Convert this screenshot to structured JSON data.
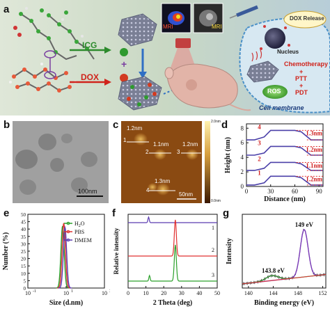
{
  "figure": {
    "panel_labels": {
      "a": "a",
      "b": "b",
      "c": "c",
      "d": "d",
      "e": "e",
      "f": "f",
      "g": "g"
    }
  },
  "panel_a": {
    "icg_label": "ICG",
    "dox_label": "DOX",
    "mri_label": "MRI",
    "mri_label2": "MRI",
    "dox_release": "DOX Release",
    "nucleus": "Nucleus",
    "chemo": "Chemotherapy",
    "ptt": "PTT",
    "pdt": "PDT",
    "ros": "ROS",
    "cell_membrane": "Cell membrane",
    "plus1": "+",
    "plus2": "+",
    "plus3": "+",
    "colors": {
      "bg": "#c6d6c0",
      "icg": "#2c8a2c",
      "dox": "#d0231b",
      "arrow_blue": "#2f6fc4"
    }
  },
  "panel_b": {
    "scalebar": "100nm"
  },
  "panel_c": {
    "heights": [
      "1.2nm",
      "1.1nm",
      "1.2nm",
      "1.3nm"
    ],
    "markers": [
      "1",
      "2",
      "3",
      "4"
    ],
    "colorbar_top": "2.0nm",
    "colorbar_bottom": "0.0nm",
    "scalebar": "50nm"
  },
  "panel_d": {
    "ylabel": "Height (nm)",
    "xlabel": "Distance (nm)",
    "xticks": [
      "0",
      "30",
      "60",
      "90"
    ],
    "yticks": [
      "0",
      "2",
      "4",
      "6",
      "8"
    ],
    "curve_labels": [
      "4",
      "3",
      "2",
      "1"
    ],
    "height_labels": [
      "1.3nm",
      "1.2nm",
      "1.1nm",
      "1.2nm"
    ]
  },
  "chart_data": [
    {
      "type": "line",
      "panel": "d",
      "xlabel": "Distance (nm)",
      "ylabel": "Height (nm)",
      "xlim": [
        0,
        95
      ],
      "ylim": [
        0,
        8.6
      ],
      "series": [
        {
          "name": "1",
          "x": [
            0,
            10,
            22,
            30,
            60,
            68,
            80,
            95
          ],
          "y": [
            0.2,
            0.2,
            0.5,
            1.4,
            1.4,
            1.2,
            0.2,
            0.2
          ]
        },
        {
          "name": "2",
          "x": [
            0,
            10,
            22,
            30,
            60,
            68,
            80,
            95
          ],
          "y": [
            2.2,
            2.2,
            2.5,
            3.3,
            3.3,
            3.1,
            2.2,
            2.2
          ]
        },
        {
          "name": "3",
          "x": [
            0,
            10,
            22,
            30,
            60,
            68,
            80,
            95
          ],
          "y": [
            4.3,
            4.3,
            4.6,
            5.5,
            5.5,
            5.3,
            4.3,
            4.3
          ]
        },
        {
          "name": "4",
          "x": [
            0,
            10,
            22,
            30,
            60,
            68,
            80,
            95
          ],
          "y": [
            6.4,
            6.4,
            6.8,
            7.7,
            7.7,
            7.5,
            6.4,
            6.4
          ]
        }
      ]
    },
    {
      "type": "line",
      "panel": "e",
      "xlabel": "Size (d.nm)",
      "ylabel": "Number (%)",
      "xscale": "log",
      "xlim": [
        0.1,
        1000
      ],
      "ylim": [
        0,
        50
      ],
      "xticks": [
        "10-1",
        "101",
        "103"
      ],
      "yticks": [
        "0",
        "5",
        "10",
        "15",
        "20",
        "25",
        "30",
        "35",
        "40",
        "45",
        "50"
      ],
      "legend": [
        "H2O",
        "PBS",
        "DMEM"
      ],
      "series": [
        {
          "name": "H2O",
          "center": 6.5,
          "peak": 42
        },
        {
          "name": "PBS",
          "center": 7.5,
          "peak": 44
        },
        {
          "name": "DMEM",
          "center": 8.7,
          "peak": 41
        }
      ]
    },
    {
      "type": "line",
      "panel": "f",
      "xlabel": "2 Theta (deg)",
      "ylabel": "Relative intensity",
      "xlim": [
        0,
        50
      ],
      "xticks": [
        "0",
        "10",
        "20",
        "30",
        "40",
        "50"
      ],
      "curve_labels": [
        "1",
        "2",
        "3"
      ],
      "series": [
        {
          "name": "1",
          "peaks": [
            [
              11.5,
              "small"
            ]
          ]
        },
        {
          "name": "2",
          "peaks": [
            [
              26.5,
              "large"
            ]
          ]
        },
        {
          "name": "3",
          "peaks": [
            [
              12,
              "small"
            ],
            [
              26.5,
              "large"
            ]
          ]
        }
      ]
    },
    {
      "type": "line",
      "panel": "g",
      "xlabel": "Binding energy (eV)",
      "ylabel": "Intensity",
      "xlim": [
        139,
        152.5
      ],
      "xticks": [
        "140",
        "144",
        "148",
        "152"
      ],
      "annotations": [
        "149 eV",
        "143.8 eV"
      ],
      "peaks": [
        [
          149,
          "main"
        ],
        [
          143.8,
          "minor"
        ]
      ]
    }
  ],
  "panel_e": {
    "legend": [
      {
        "label": "H",
        "sub": "2",
        "tail": "O"
      },
      {
        "label": "PBS"
      },
      {
        "label": "DMEM"
      }
    ]
  },
  "panel_f": {},
  "panel_g": {}
}
